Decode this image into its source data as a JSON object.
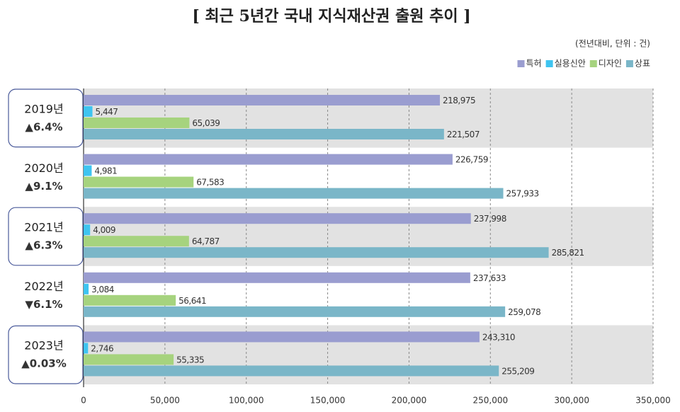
{
  "chart_data": {
    "type": "bar",
    "orientation": "horizontal",
    "title": "[ 최근 5년간 국내 지식재산권 출원 추이 ]",
    "subtitle": "(전년대비, 단위 : 건)",
    "categories": [
      "2019년",
      "2020년",
      "2021년",
      "2022년",
      "2023년"
    ],
    "annotations": [
      "▲6.4%",
      "▲9.1%",
      "▲6.3%",
      "▼6.1%",
      "▲0.03%"
    ],
    "annotation_colors": [
      "#e0701e",
      "#e0701e",
      "#e0701e",
      "#1a6fb0",
      "#e0701e"
    ],
    "series": [
      {
        "name": "특허",
        "color": "#9a9dd0",
        "label_color": "#5a5ea6",
        "values": [
          218975,
          226759,
          237998,
          237633,
          243310
        ],
        "value_labels": [
          "218,975",
          "226,759",
          "237,998",
          "237,633",
          "243,310"
        ]
      },
      {
        "name": "실용신안",
        "color": "#3ec4f0",
        "label_color": "#1aa5d8",
        "values": [
          5447,
          4981,
          4009,
          3084,
          2746
        ],
        "value_labels": [
          "5,447",
          "4,981",
          "4,009",
          "3,084",
          "2,746"
        ]
      },
      {
        "name": "디자인",
        "color": "#a6d37e",
        "label_color": "#5f9e33",
        "values": [
          65039,
          67583,
          64787,
          56641,
          55335
        ],
        "value_labels": [
          "65,039",
          "67,583",
          "64,787",
          "56,641",
          "55,335"
        ]
      },
      {
        "name": "상표",
        "color": "#7ab6c8",
        "label_color": "#2b8aa3",
        "values": [
          221507,
          257933,
          285821,
          259078,
          255209
        ],
        "value_labels": [
          "221,507",
          "257,933",
          "285,821",
          "259,078",
          "255,209"
        ]
      }
    ],
    "xlim": [
      0,
      350000
    ],
    "xticks": [
      0,
      {
        "value": 50000,
        "label": "50,000"
      },
      {
        "value": 100000,
        "label": "100,000"
      },
      {
        "value": 150000,
        "label": "150,000"
      },
      {
        "value": 200000,
        "label": "200,000"
      },
      {
        "value": 250000,
        "label": "250,000"
      },
      {
        "value": 300000,
        "label": "300,000"
      },
      {
        "value": 350000,
        "label": "350,000"
      }
    ],
    "grid": true,
    "legend": "top-right"
  }
}
